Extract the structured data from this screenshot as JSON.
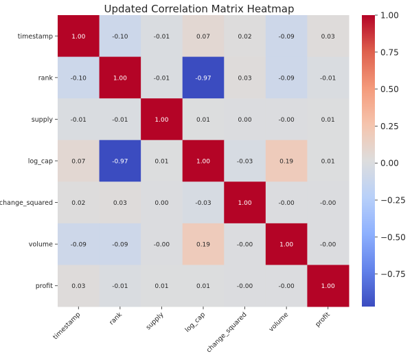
{
  "chart_data": {
    "type": "heatmap",
    "title": "Updated Correlation Matrix Heatmap",
    "variables": [
      "timestamp",
      "rank",
      "supply",
      "log_cap",
      "change_squared",
      "volume",
      "profit"
    ],
    "matrix": [
      [
        1.0,
        -0.1,
        -0.01,
        0.07,
        0.02,
        -0.09,
        0.03
      ],
      [
        -0.1,
        1.0,
        -0.01,
        -0.97,
        0.03,
        -0.09,
        -0.01
      ],
      [
        -0.01,
        -0.01,
        1.0,
        0.01,
        0.0,
        -0.0,
        0.01
      ],
      [
        0.07,
        -0.97,
        0.01,
        1.0,
        -0.03,
        0.19,
        0.01
      ],
      [
        0.02,
        0.03,
        0.0,
        -0.03,
        1.0,
        -0.0,
        -0.0
      ],
      [
        -0.09,
        -0.09,
        -0.0,
        0.19,
        -0.0,
        1.0,
        -0.0
      ],
      [
        0.03,
        -0.01,
        0.01,
        0.01,
        -0.0,
        -0.0,
        1.0
      ]
    ],
    "cell_labels": [
      [
        "1.00",
        "-0.10",
        "-0.01",
        "0.07",
        "0.02",
        "-0.09",
        "0.03"
      ],
      [
        "-0.10",
        "1.00",
        "-0.01",
        "-0.97",
        "0.03",
        "-0.09",
        "-0.01"
      ],
      [
        "-0.01",
        "-0.01",
        "1.00",
        "0.01",
        "0.00",
        "-0.00",
        "0.01"
      ],
      [
        "0.07",
        "-0.97",
        "0.01",
        "1.00",
        "-0.03",
        "0.19",
        "0.01"
      ],
      [
        "0.02",
        "0.03",
        "0.00",
        "-0.03",
        "1.00",
        "-0.00",
        "-0.00"
      ],
      [
        "-0.09",
        "-0.09",
        "-0.00",
        "0.19",
        "-0.00",
        "1.00",
        "-0.00"
      ],
      [
        "0.03",
        "-0.01",
        "0.01",
        "0.01",
        "-0.00",
        "-0.00",
        "1.00"
      ]
    ],
    "colormap": "coolwarm",
    "color_range": [
      -0.97,
      1.0
    ],
    "colorbar": {
      "ticks": [
        1.0,
        0.75,
        0.5,
        0.25,
        0.0,
        -0.25,
        -0.5,
        -0.75
      ],
      "tick_labels": [
        "1.00",
        "0.75",
        "0.50",
        "0.25",
        "0.00",
        "−0.25",
        "−0.50",
        "−0.75"
      ],
      "range": [
        -0.97,
        1.0
      ],
      "placement": "right"
    },
    "xlabel": "",
    "ylabel": "",
    "grid": false
  }
}
